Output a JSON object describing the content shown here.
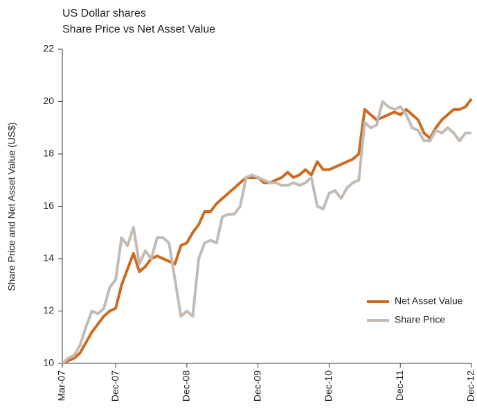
{
  "chart_data": {
    "type": "line",
    "title": "US Dollar shares",
    "subtitle": "Share Price vs Net Asset Value",
    "y_label": "Share Price and Net Asset Value (US$)",
    "categories": [
      "Mar-07",
      null,
      null,
      null,
      null,
      null,
      null,
      null,
      null,
      "Dec-07",
      null,
      null,
      null,
      null,
      null,
      null,
      null,
      null,
      null,
      null,
      null,
      "Dec-08",
      null,
      null,
      null,
      null,
      null,
      null,
      null,
      null,
      null,
      null,
      null,
      "Dec-09",
      null,
      null,
      null,
      null,
      null,
      null,
      null,
      null,
      null,
      null,
      null,
      "Dec-10",
      null,
      null,
      null,
      null,
      null,
      null,
      null,
      null,
      null,
      null,
      null,
      "Dec-11",
      null,
      null,
      null,
      null,
      null,
      null,
      null,
      null,
      null,
      null,
      null,
      "Dec-12"
    ],
    "series": [
      {
        "name": "Net Asset Value",
        "color": "#cc6a1f",
        "values": [
          10.0,
          10.1,
          10.2,
          10.4,
          10.8,
          11.2,
          11.5,
          11.8,
          12.0,
          12.1,
          13.0,
          13.6,
          14.2,
          13.5,
          13.7,
          14.0,
          14.1,
          14.0,
          13.9,
          13.8,
          14.5,
          14.6,
          15.0,
          15.3,
          15.8,
          15.8,
          16.1,
          16.3,
          16.5,
          16.7,
          16.9,
          17.1,
          17.1,
          17.1,
          16.9,
          16.9,
          17.0,
          17.1,
          17.3,
          17.1,
          17.2,
          17.4,
          17.2,
          17.7,
          17.4,
          17.4,
          17.5,
          17.6,
          17.7,
          17.8,
          18.0,
          19.7,
          19.5,
          19.3,
          19.4,
          19.5,
          19.6,
          19.5,
          19.7,
          19.5,
          19.3,
          18.8,
          18.6,
          19.0,
          19.3,
          19.5,
          19.7,
          19.7,
          19.8,
          20.1
        ]
      },
      {
        "name": "Share Price",
        "color": "#c3bbb3",
        "values": [
          10.0,
          10.2,
          10.3,
          10.7,
          11.4,
          12.0,
          11.9,
          12.1,
          12.9,
          13.2,
          14.8,
          14.5,
          15.2,
          13.8,
          14.3,
          14.0,
          14.8,
          14.8,
          14.6,
          13.2,
          11.8,
          12.0,
          11.8,
          14.0,
          14.6,
          14.7,
          14.6,
          15.6,
          15.7,
          15.7,
          16.0,
          17.1,
          17.2,
          17.1,
          17.0,
          16.9,
          16.9,
          16.8,
          16.8,
          16.9,
          16.8,
          16.9,
          17.1,
          16.0,
          15.9,
          16.5,
          16.6,
          16.3,
          16.7,
          16.9,
          17.0,
          19.2,
          19.0,
          19.1,
          20.0,
          19.8,
          19.7,
          19.8,
          19.5,
          19.0,
          18.9,
          18.5,
          18.5,
          18.9,
          18.8,
          19.0,
          18.8,
          18.5,
          18.8,
          18.8
        ]
      }
    ],
    "ylim": [
      10,
      22
    ],
    "yticks": [
      10,
      12,
      14,
      16,
      18,
      20,
      22
    ],
    "legend": "lower right",
    "grid": false
  }
}
